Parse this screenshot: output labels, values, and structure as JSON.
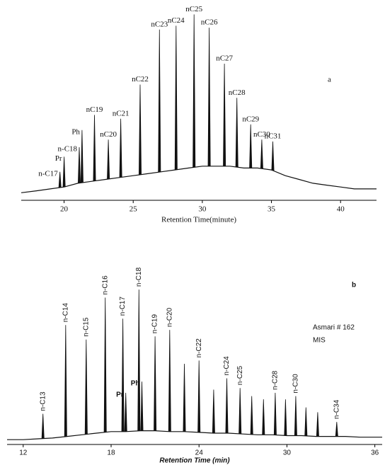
{
  "chart_data": [
    {
      "type": "line",
      "panel_label": "a",
      "xlabel": "Retention Time(minute)",
      "xlim": [
        16.9,
        42.6
      ],
      "xticks": [
        20,
        25,
        30,
        35,
        40
      ],
      "ylim": [
        0,
        100
      ],
      "label_orientation": "horizontal",
      "color": "#111111",
      "x": [
        16.9,
        18,
        19,
        20,
        21,
        22,
        23,
        24,
        25,
        26,
        27,
        28,
        29,
        30,
        31,
        32,
        33,
        34,
        35,
        36,
        37,
        38,
        39,
        40,
        41,
        42,
        42.6
      ],
      "values": [
        4,
        5,
        6,
        7,
        9,
        10,
        11,
        12,
        13,
        14,
        15,
        16,
        17,
        18,
        18,
        18,
        17,
        17,
        16,
        13,
        11,
        9,
        8,
        7,
        6,
        6,
        6
      ],
      "peaks": {
        "labels": [
          "n-C17",
          "Pr",
          "n-C18",
          "Ph",
          "nC19",
          "nC20",
          "nC21",
          "nC22",
          "nC23",
          "nC24",
          "nC25",
          "nC26",
          "nC27",
          "nC28",
          "nC29",
          "nC30",
          "nC31"
        ],
        "x": [
          19.7,
          20.0,
          21.1,
          21.3,
          22.2,
          23.2,
          24.1,
          25.5,
          26.9,
          28.1,
          29.4,
          30.5,
          31.6,
          32.5,
          33.5,
          34.3,
          35.1
        ],
        "values": [
          15,
          23,
          28,
          37,
          45,
          32,
          43,
          61,
          90,
          92,
          98,
          91,
          72,
          54,
          40,
          32,
          31
        ]
      }
    },
    {
      "type": "line",
      "panel_label": "b",
      "xlabel": "Retention Time (min)",
      "annotation": [
        "Asmari # 162",
        "MIS"
      ],
      "xlim": [
        10.9,
        36.5
      ],
      "xticks": [
        12,
        18,
        24,
        30,
        36
      ],
      "ylim": [
        0,
        100
      ],
      "label_orientation": "vertical",
      "color": "#111111",
      "x": [
        10.9,
        12,
        13,
        14,
        15,
        16,
        17,
        18,
        19,
        20,
        21,
        22,
        23,
        24,
        25,
        26,
        27,
        28,
        29,
        30,
        31,
        32,
        33,
        34,
        35,
        36,
        36.5
      ],
      "values": [
        3,
        3,
        3.5,
        4,
        5,
        6,
        7,
        8,
        8,
        8.5,
        8.5,
        8,
        8,
        7.5,
        7,
        7,
        6.5,
        6,
        6,
        5.5,
        5.5,
        5,
        5,
        5,
        4.5,
        4.5,
        4.5
      ],
      "peaks": {
        "labels": [
          "n-C13",
          "n-C14",
          "n-C15",
          "n-C16",
          "n-C17",
          "Pr",
          "n-C18",
          "Ph",
          "n-C19",
          "n-C20",
          null,
          "n-C22",
          null,
          "n-C24",
          "n-C25",
          null,
          null,
          "n-C28",
          null,
          "n-C30",
          null,
          null,
          "n-C34"
        ],
        "x": [
          13.35,
          14.9,
          16.3,
          17.6,
          18.8,
          19.0,
          19.9,
          20.1,
          21.0,
          22.0,
          23.0,
          24.0,
          25.0,
          25.9,
          26.8,
          27.6,
          28.4,
          29.2,
          29.9,
          30.6,
          31.3,
          32.1,
          33.4
        ],
        "values": [
          19,
          74,
          65,
          91,
          78,
          32,
          96,
          39,
          67,
          71,
          50,
          52,
          34,
          41,
          35,
          30,
          28,
          32,
          28,
          30,
          23,
          20,
          14
        ]
      }
    }
  ]
}
